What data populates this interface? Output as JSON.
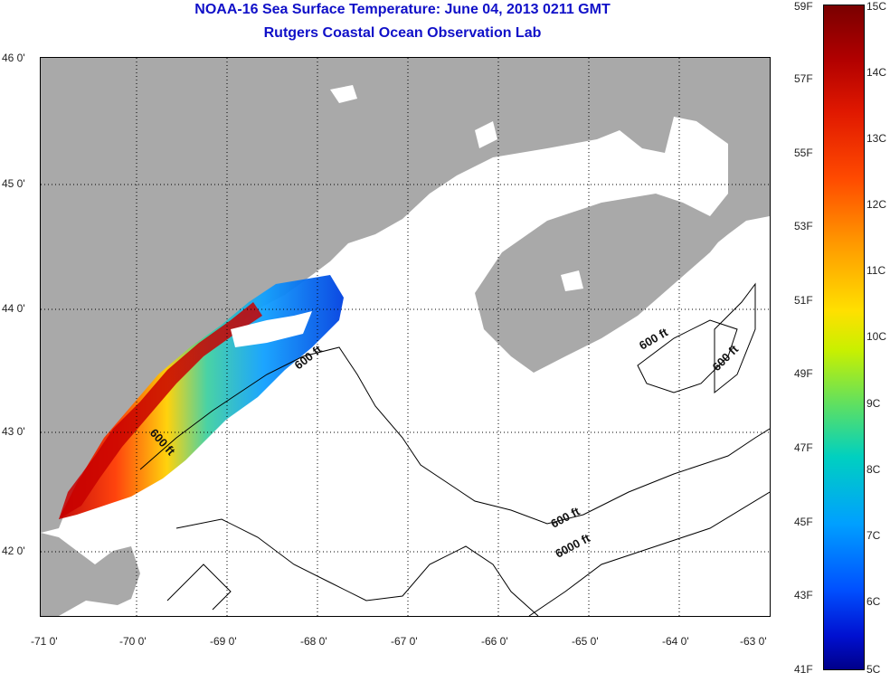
{
  "header": {
    "title": "NOAA-16 Sea Surface Temperature:  June 04, 2013 0211 GMT",
    "subtitle": "Rutgers Coastal Ocean Observation Lab"
  },
  "map": {
    "lat_labels": [
      "46 0'",
      "45 0'",
      "44 0'",
      "43 0'",
      "42 0'"
    ],
    "lon_labels": [
      "-71 0'",
      "-70 0'",
      "-69 0'",
      "-68 0'",
      "-67 0'",
      "-66 0'",
      "-65 0'",
      "-64 0'",
      "-63 0'"
    ],
    "contour_labels": [
      "600 ft",
      "600 ft",
      "600 ft",
      "600 ft",
      "600 ft",
      "6000 ft"
    ],
    "land_color": "#a9a9a9"
  },
  "colorbar": {
    "fahrenheit_labels": [
      "59F",
      "57F",
      "55F",
      "53F",
      "51F",
      "49F",
      "47F",
      "45F",
      "43F",
      "41F"
    ],
    "celsius_labels": [
      "15C",
      "14C",
      "13C",
      "12C",
      "11C",
      "10C",
      "9C",
      "8C",
      "7C",
      "6C",
      "5C"
    ]
  }
}
